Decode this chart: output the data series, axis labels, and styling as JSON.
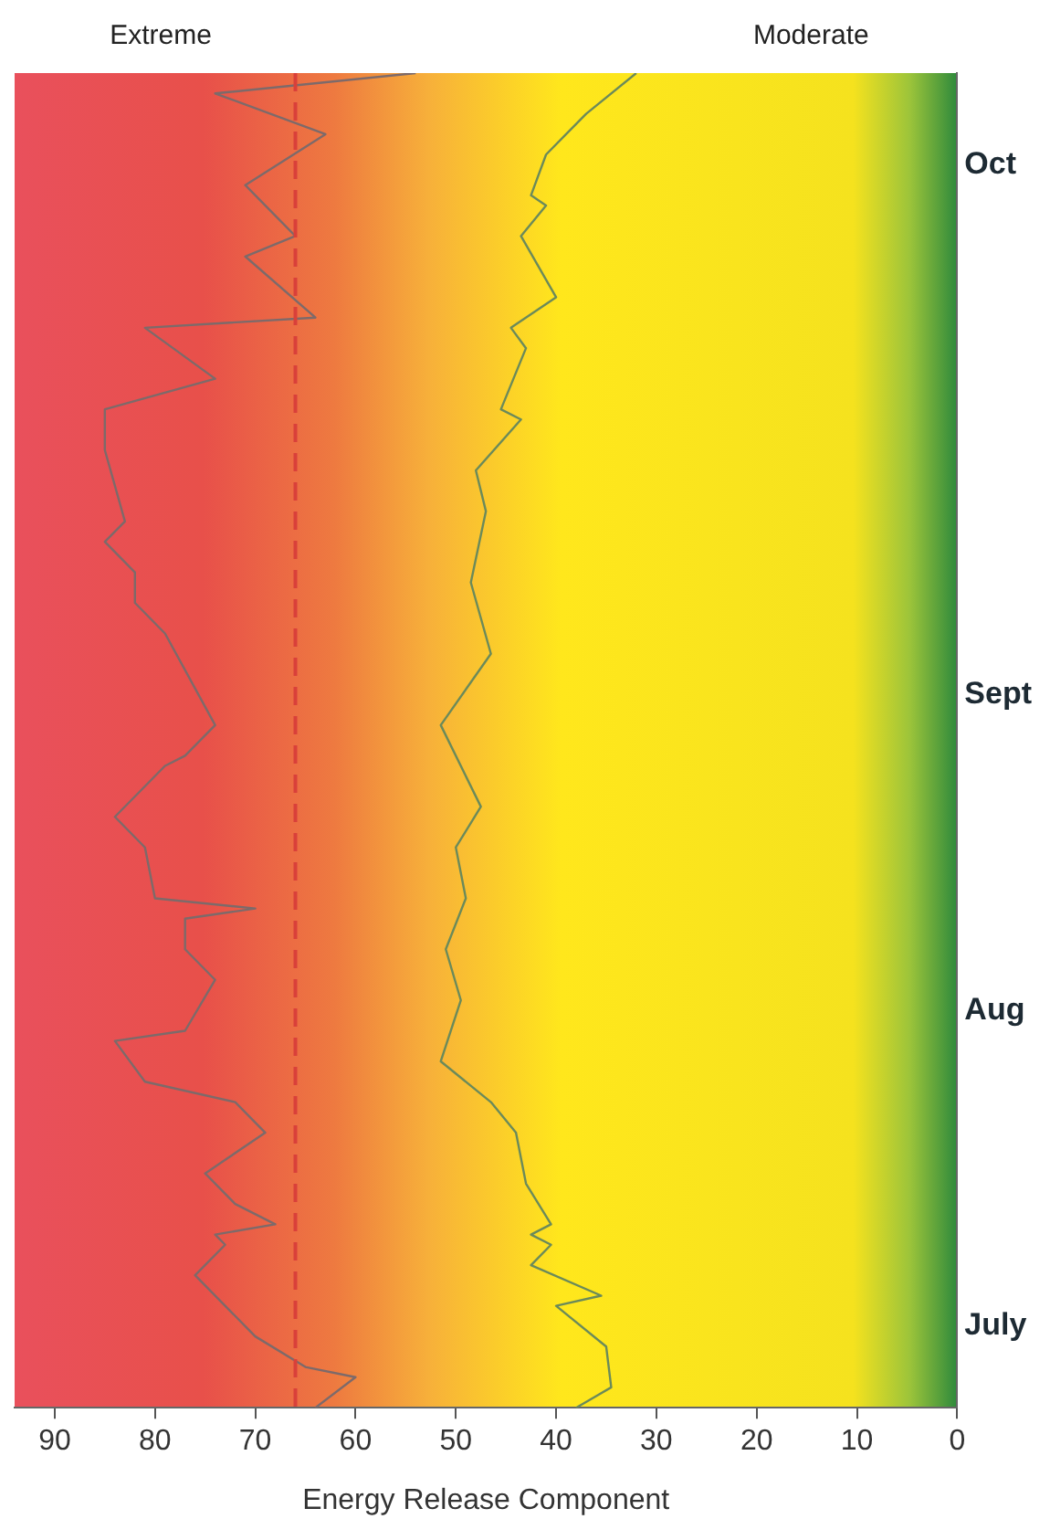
{
  "chart_data": {
    "type": "line",
    "orientation": "horizontal",
    "xlabel": "Energy Release Component",
    "annotations": [
      "Extreme",
      "Moderate"
    ],
    "xlim": [
      94,
      0
    ],
    "xticks": [
      90,
      80,
      70,
      60,
      50,
      40,
      30,
      20,
      10,
      0
    ],
    "ylim": [
      "--07-01",
      "--11-09"
    ],
    "yticks": [
      {
        "value": "--07-09",
        "label": "July"
      },
      {
        "value": "--08-09",
        "label": "Aug"
      },
      {
        "value": "--09-09",
        "label": "Sept"
      },
      {
        "value": "--10-31",
        "label": "Oct"
      }
    ],
    "grid": false,
    "legend": false,
    "marker": "none",
    "line_style": "solid",
    "ref_lines": [
      {
        "axis": "x",
        "value": 66,
        "color": "#d9403a",
        "line_style": "dashed"
      }
    ],
    "series": [
      {
        "color": "#7d6a6a",
        "x": [
          "--07-01",
          "--07-04",
          "--07-05",
          "--07-08",
          "--07-14",
          "--07-17",
          "--07-18",
          "--07-19",
          "--07-21",
          "--07-24",
          "--07-28",
          "--07-31",
          "--08-02",
          "--08-06",
          "--08-07",
          "--08-12",
          "--08-15",
          "--08-18",
          "--08-19",
          "--08-20",
          "--08-25",
          "--08-28",
          "--09-02",
          "--09-03",
          "--09-06",
          "--09-15",
          "--09-18",
          "--09-21",
          "--09-24",
          "--09-26",
          "--10-03",
          "--10-07",
          "--10-10",
          "--10-15",
          "--10-16",
          "--10-22",
          "--10-24",
          "--10-29",
          "--11-03",
          "--11-07",
          "--11-09"
        ],
        "values": [
          64,
          60,
          65,
          70,
          76,
          73,
          74,
          68,
          72,
          75,
          69,
          72,
          81,
          84,
          77,
          74,
          77,
          77,
          70,
          80,
          81,
          84,
          79,
          77,
          74,
          79,
          82,
          82,
          85,
          83,
          85,
          85,
          74,
          81,
          64,
          71,
          66,
          71,
          63,
          74,
          54
        ]
      },
      {
        "color": "#6b8a5a",
        "x": [
          "--07-01",
          "--07-03",
          "--07-07",
          "--07-11",
          "--07-12",
          "--07-15",
          "--07-17",
          "--07-18",
          "--07-19",
          "--07-23",
          "--07-28",
          "--07-31",
          "--08-04",
          "--08-10",
          "--08-15",
          "--08-20",
          "--08-25",
          "--08-29",
          "--09-06",
          "--09-13",
          "--09-20",
          "--09-27",
          "--10-01",
          "--10-06",
          "--10-07",
          "--10-13",
          "--10-15",
          "--10-18",
          "--10-24",
          "--10-27",
          "--10-28",
          "--11-01",
          "--11-03",
          "--11-05",
          "--11-09"
        ],
        "values": [
          38,
          34.5,
          35,
          40,
          35.5,
          42.5,
          40.5,
          42.5,
          40.5,
          43,
          44,
          46.5,
          51.5,
          49.5,
          51,
          49,
          50,
          47.5,
          51.5,
          46.5,
          48.5,
          47,
          48,
          43.5,
          45.5,
          43,
          44.5,
          40,
          43.5,
          41,
          42.5,
          41,
          39,
          37,
          32
        ]
      }
    ]
  }
}
